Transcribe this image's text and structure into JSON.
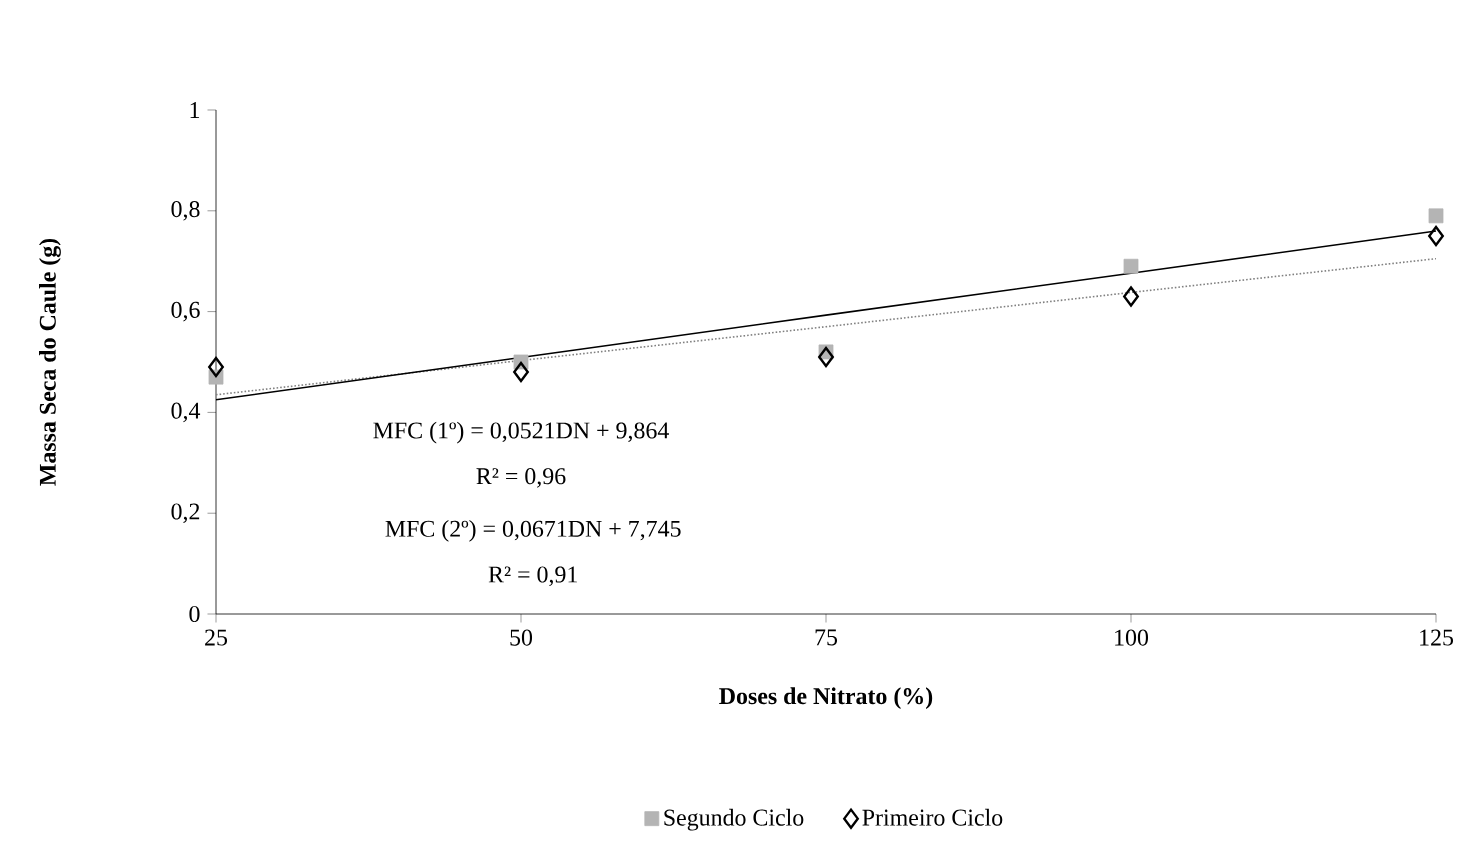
{
  "chart_data": {
    "type": "scatter",
    "xlabel": "Doses de Nitrato (%)",
    "ylabel": "Massa Seca do Caule (g)",
    "x": [
      25,
      50,
      75,
      100,
      125
    ],
    "xlim": [
      25,
      125
    ],
    "xticks": [
      25,
      50,
      75,
      100,
      125
    ],
    "ylim": [
      0,
      1
    ],
    "yticks": [
      {
        "value": 0,
        "label": "0"
      },
      {
        "value": 0.2,
        "label": "0,2"
      },
      {
        "value": 0.4,
        "label": "0,4"
      },
      {
        "value": 0.6,
        "label": "0,6"
      },
      {
        "value": 0.8,
        "label": "0,8"
      },
      {
        "value": 1,
        "label": "1"
      }
    ],
    "grid": false,
    "legend": "bottom",
    "series": [
      {
        "name": "Primeiro Ciclo",
        "marker": "diamond",
        "color": "#000000",
        "values": [
          0.49,
          0.48,
          0.51,
          0.63,
          0.75
        ]
      },
      {
        "name": "Segundo Ciclo",
        "marker": "square",
        "color": "#b4b4b4",
        "values": [
          0.47,
          0.5,
          0.52,
          0.69,
          0.79
        ]
      },
      {
        "type": "line",
        "line_style": "dotted",
        "color": "#808080",
        "values": [
          0.435,
          0.503,
          0.57,
          0.638,
          0.705
        ]
      },
      {
        "type": "line",
        "line_style": "solid",
        "color": "#000000",
        "values": [
          0.425,
          0.509,
          0.593,
          0.676,
          0.76
        ]
      }
    ],
    "annotations": [
      "MFC (1º) = 0,0521DN + 9,864",
      "R² = 0,96",
      "MFC (2º) = 0,0671DN + 7,745",
      "R² = 0,91"
    ]
  }
}
